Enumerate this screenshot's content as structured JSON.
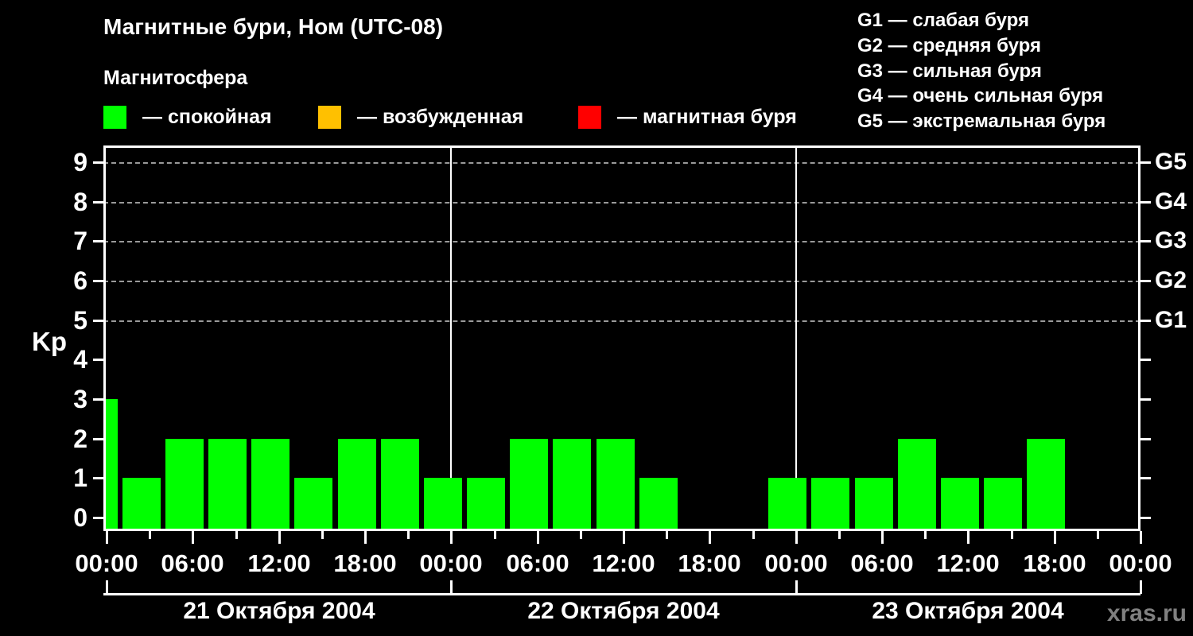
{
  "header": {
    "title": "Магнитные бури, Ном (UTC-08)",
    "subtitle": "Магнитосфера",
    "legend": [
      {
        "color": "#00ff00",
        "label": "— спокойная"
      },
      {
        "color": "#ffc000",
        "label": "— возбужденная"
      },
      {
        "color": "#ff0000",
        "label": "— магнитная буря"
      }
    ],
    "storm_scale": [
      "G1 — слабая буря",
      "G2 — средняя буря",
      "G3 — сильная буря",
      "G4 — очень сильная буря",
      "G5 — экстремальная буря"
    ]
  },
  "watermark": "xras.ru",
  "chart_data": {
    "type": "bar",
    "ylabel": "Kp",
    "ylim": [
      -0.345,
      9.42
    ],
    "y_ticks": [
      0,
      1,
      2,
      3,
      4,
      5,
      6,
      7,
      8,
      9
    ],
    "gridline_values": [
      5,
      6,
      7,
      8,
      9
    ],
    "right_axis_ticks": [
      0,
      1,
      2,
      3,
      4,
      5,
      6,
      7,
      8,
      9
    ],
    "right_axis_labels": [
      {
        "value": 5,
        "label": "G1"
      },
      {
        "value": 6,
        "label": "G2"
      },
      {
        "value": 7,
        "label": "G3"
      },
      {
        "value": 8,
        "label": "G4"
      },
      {
        "value": 9,
        "label": "G5"
      }
    ],
    "x_hours_total": 72,
    "interval_hours": 3,
    "x_tick_labels": [
      "00:00",
      "06:00",
      "12:00",
      "18:00",
      "00:00",
      "06:00",
      "12:00",
      "18:00",
      "00:00",
      "06:00",
      "12:00",
      "18:00",
      "00:00"
    ],
    "colors": {
      "quiet": "#00ff00",
      "excited": "#ffc000",
      "storm": "#ff0000"
    },
    "days": [
      {
        "date": "21 Октября 2004",
        "kp_values": [
          3,
          1,
          2,
          2,
          2,
          1,
          2,
          2
        ]
      },
      {
        "date": "22 Октября 2004",
        "kp_values": [
          1,
          1,
          2,
          2,
          2,
          1,
          null,
          null
        ]
      },
      {
        "date": "23 Октября 2004",
        "kp_values": [
          1,
          1,
          1,
          2,
          1,
          1,
          2,
          null
        ]
      }
    ],
    "legend_position": "top",
    "grid": "dashed horizontal at 5-9 only",
    "background": "#000000"
  }
}
